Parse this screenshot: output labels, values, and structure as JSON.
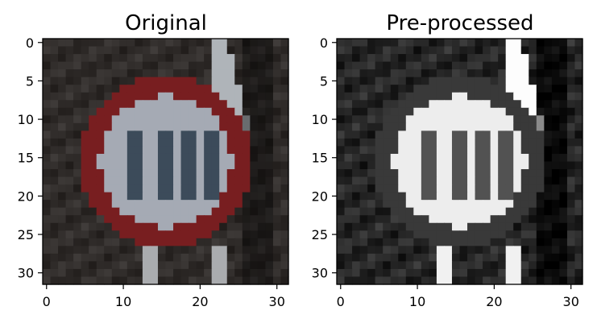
{
  "chart_data": [
    {
      "type": "image",
      "title": "Original",
      "image_size": [
        32,
        32
      ],
      "colormap": "rgb",
      "xlabel": "",
      "ylabel": "",
      "xlim": [
        -0.5,
        31.5
      ],
      "ylim": [
        31.5,
        -0.5
      ],
      "xticks": [
        0,
        10,
        20,
        30
      ],
      "yticks": [
        0,
        5,
        10,
        15,
        20,
        25,
        30
      ],
      "xtick_labels": [
        "0",
        "10",
        "20",
        "30"
      ],
      "ytick_labels": [
        "0",
        "5",
        "10",
        "15",
        "20",
        "25",
        "30"
      ]
    },
    {
      "type": "image",
      "title": "Pre-processed",
      "image_size": [
        32,
        32
      ],
      "colormap": "gray",
      "xlabel": "",
      "ylabel": "",
      "xlim": [
        -0.5,
        31.5
      ],
      "ylim": [
        31.5,
        -0.5
      ],
      "xticks": [
        0,
        10,
        20,
        30
      ],
      "yticks": [
        0,
        5,
        10,
        15,
        20,
        25,
        30
      ],
      "xtick_labels": [
        "0",
        "10",
        "20",
        "30"
      ],
      "ytick_labels": [
        "0",
        "5",
        "10",
        "15",
        "20",
        "25",
        "30"
      ]
    }
  ]
}
